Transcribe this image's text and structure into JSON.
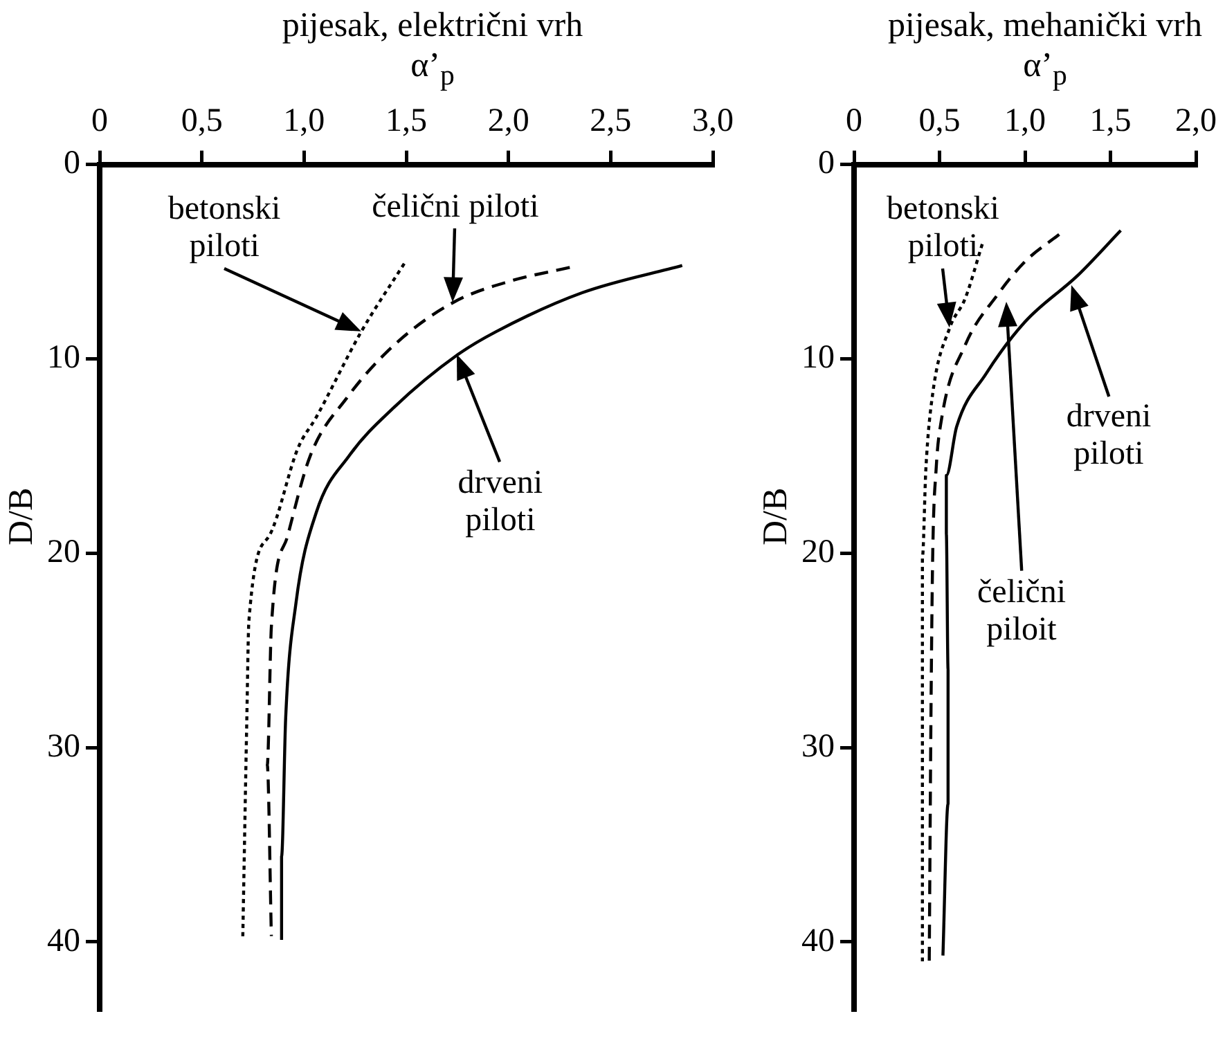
{
  "chart_data": [
    {
      "type": "line",
      "title": "pijesak, električni vrh",
      "xlabel": "α’$_{p}$",
      "ylabel": "D/B",
      "xlim": [
        0,
        3
      ],
      "xticks": [
        0,
        {
          "value": 0.5,
          "label": "0,5"
        },
        {
          "value": 1,
          "label": "1,0"
        },
        {
          "value": 1.5,
          "label": "1,5"
        },
        {
          "value": 2,
          "label": "2,0"
        },
        {
          "value": 2.5,
          "label": "2,5"
        },
        {
          "value": 3,
          "label": "3,0"
        }
      ],
      "ylim": [
        43.5,
        0
      ],
      "yticks": [
        0,
        10,
        20,
        30,
        40
      ],
      "grid": false,
      "legend": false,
      "marker": "none",
      "series": [
        {
          "color": "#000000",
          "line_style": "dotted",
          "x": [
            1.49,
            1.28,
            1.06,
            0.97,
            0.83,
            0.73,
            0.72,
            0.7
          ],
          "values": [
            5.1,
            8.6,
            13.0,
            14.6,
            19.1,
            23.5,
            28.5,
            39.9
          ]
        },
        {
          "color": "#000000",
          "line_style": "dashed",
          "x": [
            2.3,
            2.01,
            1.73,
            1.44,
            1.21,
            1.03,
            0.92,
            0.84,
            0.82,
            0.84
          ],
          "values": [
            5.3,
            6.0,
            7.1,
            9.3,
            12.0,
            15.0,
            19.1,
            23.8,
            30.9,
            39.7
          ]
        },
        {
          "color": "#000000",
          "line_style": "solid",
          "x": [
            2.85,
            2.36,
            1.94,
            1.75,
            1.44,
            1.22,
            1.06,
            0.96,
            0.91,
            0.89,
            0.89
          ],
          "values": [
            5.2,
            6.6,
            8.6,
            9.8,
            12.5,
            15.0,
            17.9,
            22.6,
            28.5,
            35.6,
            39.9
          ]
        }
      ],
      "annotations": [
        "betonski\npiloti",
        "čelični piloti",
        "drveni\npiloti"
      ]
    },
    {
      "type": "line",
      "title": "pijesak, mehanički vrh",
      "xlabel": "α’$_{p}$",
      "ylabel": "D/B",
      "xlim": [
        0,
        2
      ],
      "xticks": [
        0,
        {
          "value": 0.5,
          "label": "0,5"
        },
        {
          "value": 1,
          "label": "1,0"
        },
        {
          "value": 1.5,
          "label": "1,5"
        },
        {
          "value": 2,
          "label": "2,0"
        }
      ],
      "ylim": [
        43.5,
        0
      ],
      "yticks": [
        0,
        10,
        20,
        30,
        40
      ],
      "grid": false,
      "legend": false,
      "marker": "none",
      "series": [
        {
          "color": "#000000",
          "line_style": "dotted",
          "x": [
            0.75,
            0.65,
            0.56,
            0.46,
            0.42,
            0.4,
            0.4,
            0.4
          ],
          "values": [
            4.1,
            6.9,
            8.4,
            11.8,
            15.7,
            20.2,
            28.3,
            41.0
          ]
        },
        {
          "color": "#000000",
          "line_style": "dashed",
          "x": [
            1.2,
            1.0,
            0.84,
            0.65,
            0.51,
            0.48,
            0.46,
            0.45,
            0.44
          ],
          "values": [
            3.6,
            5.0,
            6.7,
            9.3,
            13.2,
            15.7,
            20.2,
            28.3,
            41.0
          ]
        },
        {
          "color": "#000000",
          "line_style": "solid",
          "x": [
            1.56,
            1.31,
            1.0,
            0.77,
            0.6,
            0.54,
            0.54,
            0.55,
            0.55,
            0.52
          ],
          "values": [
            3.4,
            5.7,
            8.1,
            10.8,
            13.5,
            16.0,
            19.0,
            26.0,
            32.9,
            40.7
          ]
        }
      ],
      "annotations": [
        "betonski\npiloti",
        "čelični\npiloit",
        "drveni\npiloti"
      ]
    }
  ]
}
